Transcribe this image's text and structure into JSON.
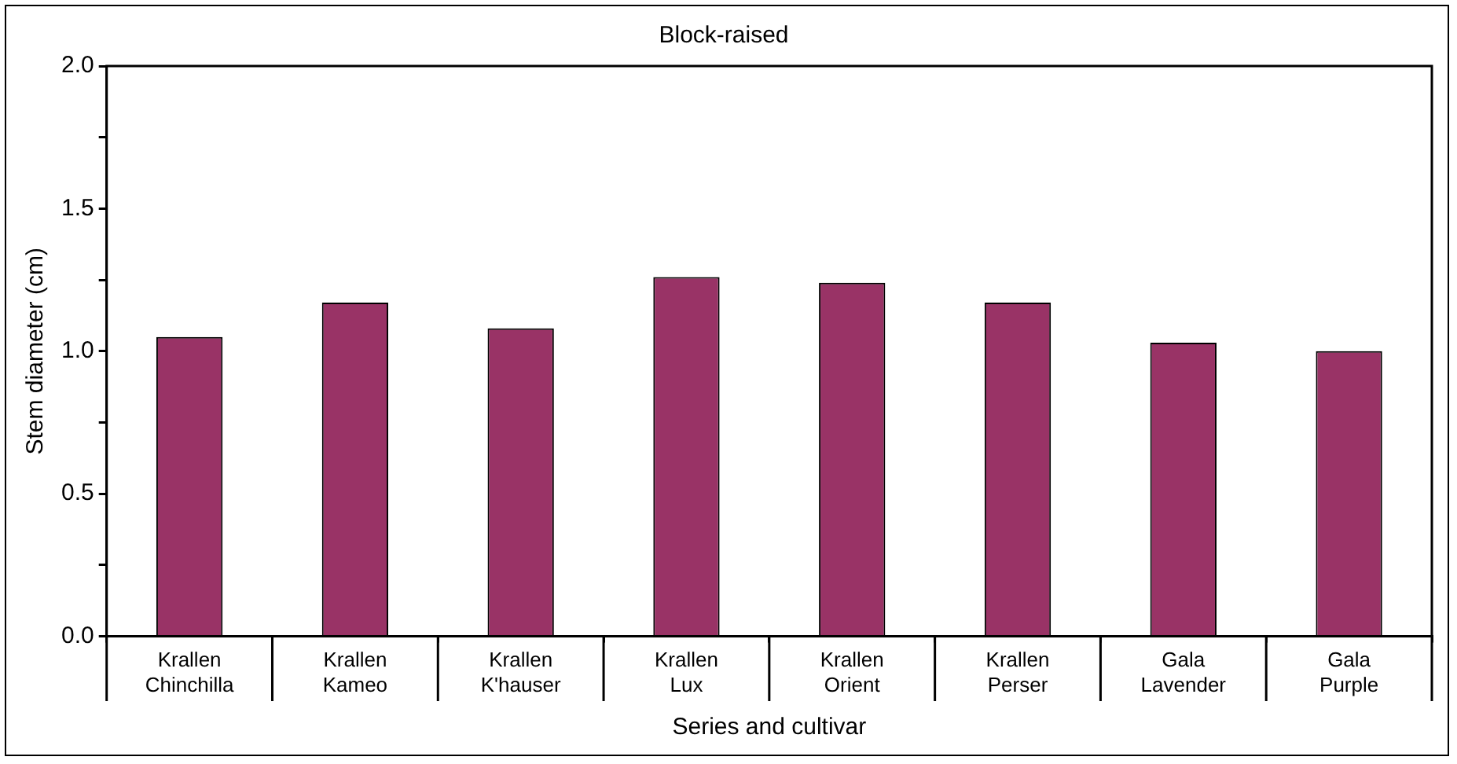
{
  "chart_data": {
    "type": "bar",
    "title": "Block-raised",
    "xlabel": "Series and cultivar",
    "ylabel": "Stem diameter (cm)",
    "categories": [
      "Krallen Chinchilla",
      "Krallen Kameo",
      "Krallen K'hauser",
      "Krallen Lux",
      "Krallen Orient",
      "Krallen Perser",
      "Gala Lavender",
      "Gala Purple"
    ],
    "values": [
      1.05,
      1.17,
      1.08,
      1.26,
      1.24,
      1.17,
      1.03,
      1.0
    ],
    "color": "#993366",
    "ylim": [
      0,
      2
    ],
    "yticks": [
      {
        "value": 0,
        "label": "0.0"
      },
      {
        "value": 0.25,
        "label": null
      },
      {
        "value": 0.5,
        "label": "0.5"
      },
      {
        "value": 0.75,
        "label": null
      },
      {
        "value": 1,
        "label": "1.0"
      },
      {
        "value": 1.25,
        "label": null
      },
      {
        "value": 1.5,
        "label": "1.5"
      },
      {
        "value": 1.75,
        "label": null
      },
      {
        "value": 2,
        "label": "2.0"
      }
    ],
    "grid": false,
    "legend": false
  }
}
